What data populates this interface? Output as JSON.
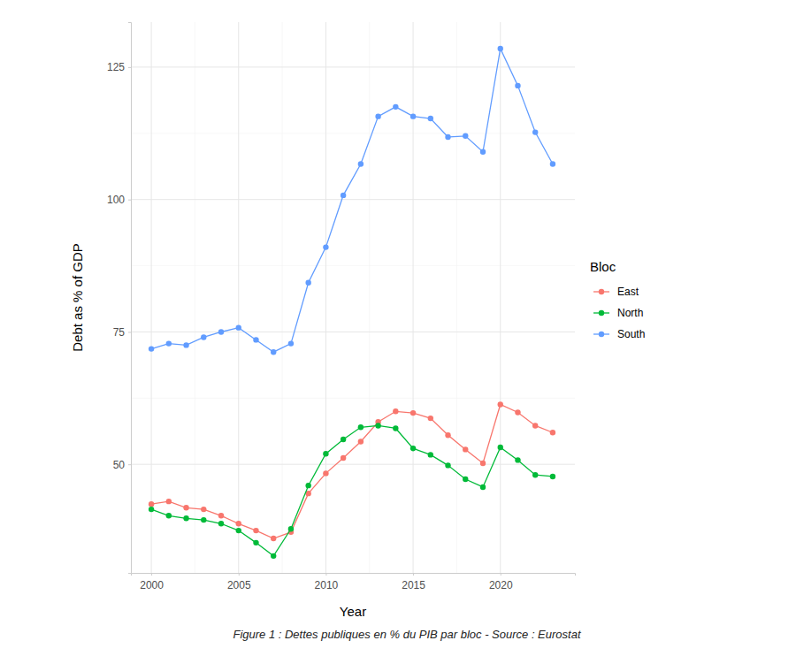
{
  "chart_data": {
    "type": "line",
    "x_label": "Year",
    "y_label": "Debt as % of GDP",
    "caption": "Figure 1 : Dettes publiques en % du PIB par bloc - Source : Eurostat",
    "legend_title": "Bloc",
    "legend": "right",
    "grid": true,
    "marker": "circle",
    "line_style": "solid",
    "x": [
      2000,
      2001,
      2002,
      2003,
      2004,
      2005,
      2006,
      2007,
      2008,
      2009,
      2010,
      2011,
      2012,
      2013,
      2014,
      2015,
      2016,
      2017,
      2018,
      2019,
      2020,
      2021,
      2022,
      2023
    ],
    "xlim": [
      1998.83,
      2024.27
    ],
    "xticks": [
      2000,
      2005,
      2010,
      2015,
      2020
    ],
    "ylim": [
      29.5,
      133.5
    ],
    "yticks": [
      50,
      75,
      100,
      125
    ],
    "series": [
      {
        "name": "East",
        "color": "#F8766D",
        "values": [
          42.5,
          43.0,
          41.8,
          41.5,
          40.3,
          38.8,
          37.5,
          36.0,
          37.2,
          44.5,
          48.3,
          51.2,
          54.3,
          58.0,
          60.0,
          59.7,
          58.7,
          55.5,
          52.8,
          50.2,
          61.3,
          59.8,
          57.3,
          56.0
        ]
      },
      {
        "name": "North",
        "color": "#00BA38",
        "values": [
          41.5,
          40.3,
          39.8,
          39.5,
          38.8,
          37.5,
          35.2,
          32.7,
          37.8,
          46.0,
          52.0,
          54.7,
          57.0,
          57.3,
          56.8,
          53.0,
          51.8,
          49.8,
          47.2,
          45.7,
          53.2,
          50.8,
          48.0,
          47.7
        ]
      },
      {
        "name": "South",
        "color": "#619CFF",
        "values": [
          71.8,
          72.8,
          72.5,
          74.0,
          75.0,
          75.8,
          73.5,
          71.2,
          72.8,
          84.3,
          91.0,
          100.8,
          106.7,
          115.7,
          117.5,
          115.7,
          115.3,
          111.8,
          112.0,
          109.0,
          128.5,
          121.5,
          112.7,
          106.7
        ]
      }
    ]
  }
}
